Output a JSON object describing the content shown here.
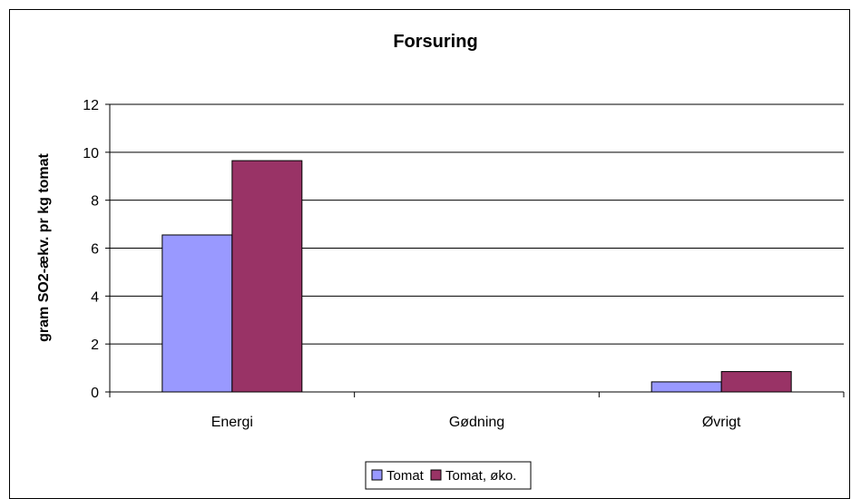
{
  "chart_data": {
    "type": "bar",
    "title": "Forsuring",
    "xlabel": "",
    "ylabel": "gram SO2-ækv. pr kg tomat",
    "categories": [
      "Energi",
      "Gødning",
      "Øvrigt"
    ],
    "series": [
      {
        "name": "Tomat",
        "color": "#9999FF",
        "values": [
          6.55,
          0,
          0.42
        ]
      },
      {
        "name": "Tomat, øko.",
        "color": "#993366",
        "values": [
          9.65,
          0,
          0.85
        ]
      }
    ],
    "ylim": [
      0,
      12
    ],
    "yticks": [
      0,
      2,
      4,
      6,
      8,
      10,
      12
    ],
    "grid": true,
    "legend_position": "bottom"
  }
}
